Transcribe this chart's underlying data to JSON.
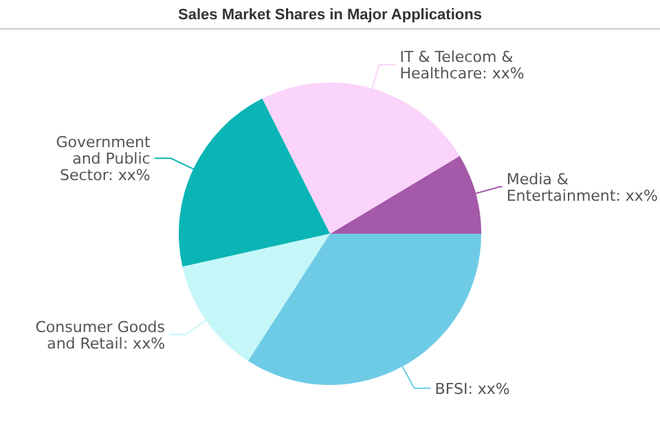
{
  "chart_data": {
    "type": "pie",
    "title": "Sales Market Shares in Major Applications",
    "categories": [
      "Media & Entertainment",
      "IT & Telecom & Healthcare",
      "Government and Public Sector",
      "Consumer Goods and Retail",
      "BFSI"
    ],
    "values": [
      8.6,
      23.8,
      21.1,
      12.4,
      34.1
    ],
    "value_labels": [
      "xx%",
      "xx%",
      "xx%",
      "xx%",
      "xx%"
    ],
    "colors": [
      "#a45aa8",
      "#fad4fa",
      "#0bb5b5",
      "#c5f6f8",
      "#6ecbe6"
    ]
  }
}
